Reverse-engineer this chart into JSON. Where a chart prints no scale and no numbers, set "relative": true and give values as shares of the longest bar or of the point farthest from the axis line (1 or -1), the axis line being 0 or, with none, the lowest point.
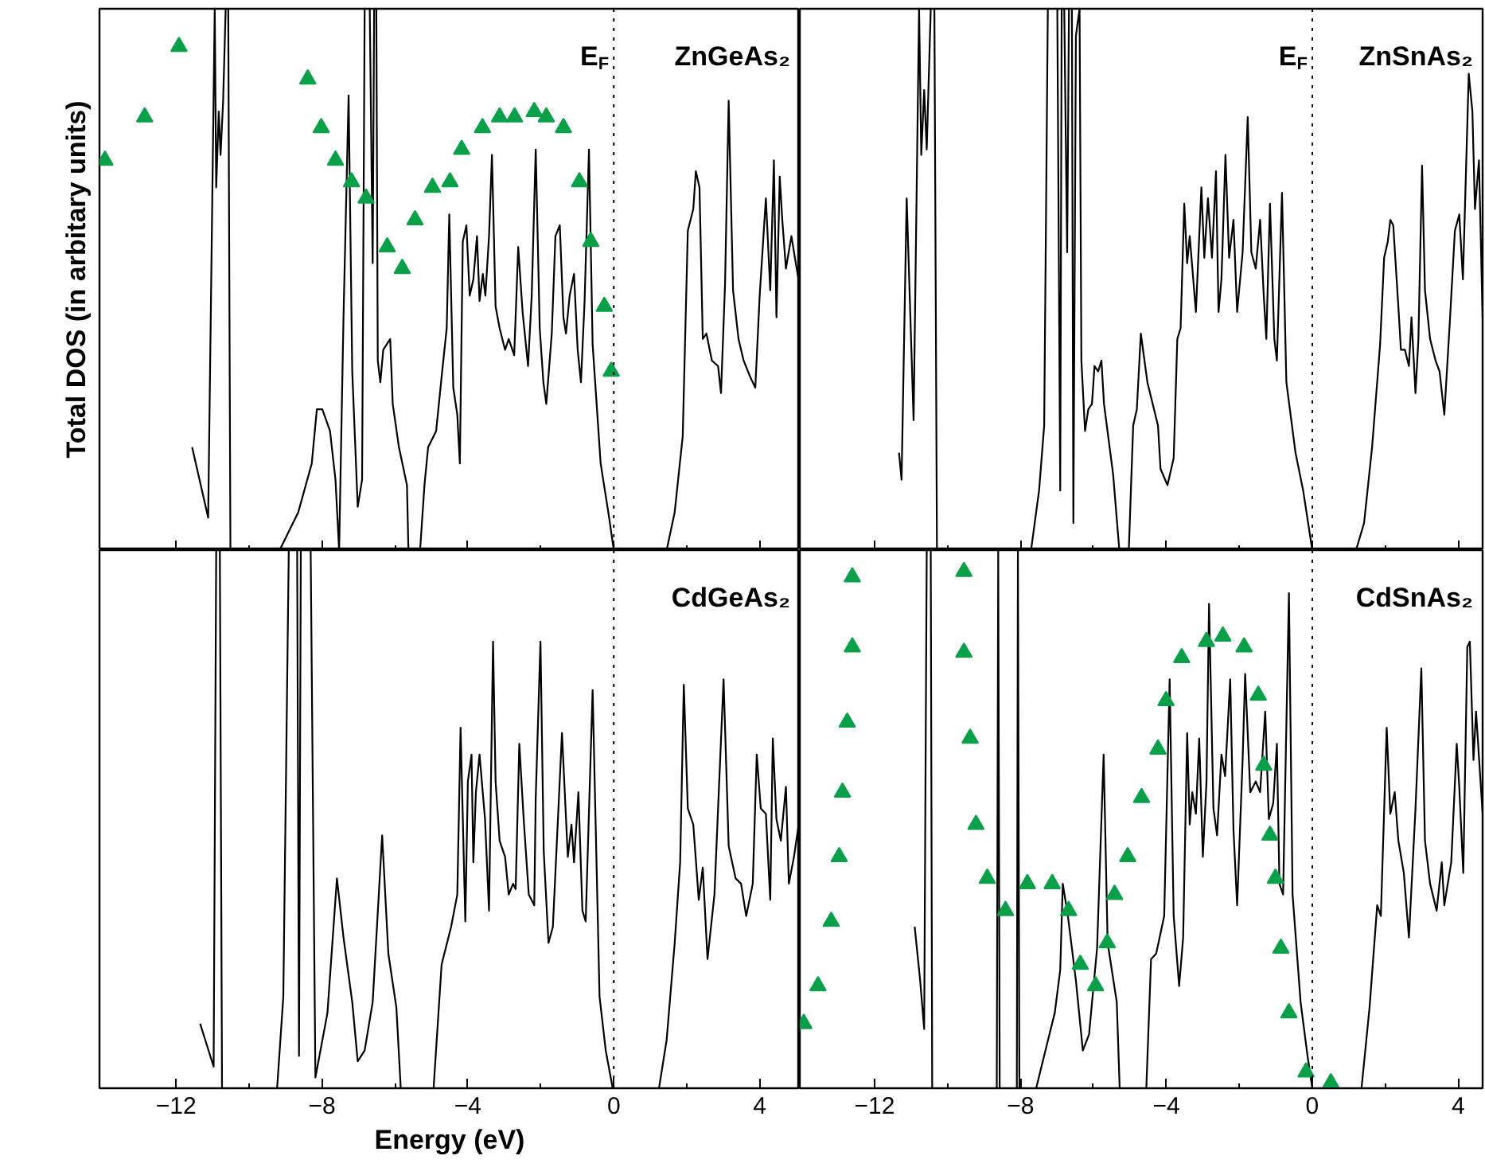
{
  "chart_data": [
    {
      "type": "line",
      "relative": true,
      "tick_labels": false,
      "ylabel": "Total DOS (in arbitary units)",
      "xlim": [
        -14.1,
        5.1
      ],
      "xticks": [
        -12,
        {
          "value": -10,
          "label": null
        },
        -8,
        {
          "value": -6,
          "label": null
        },
        -4,
        {
          "value": -2,
          "label": null
        },
        0,
        {
          "value": 2,
          "label": null
        },
        4
      ],
      "annotations": [
        "ZnGeAs₂"
      ],
      "ref_lines": [
        {
          "axis": "x",
          "value": 0,
          "label": "E$_{F}$",
          "line_style": "dotted"
        }
      ],
      "series": [
        {
          "type": "line",
          "color": "#000000",
          "x": [
            -11.56,
            -11.12,
            -10.94,
            -10.9,
            -10.83,
            -10.78,
            -10.71,
            -10.64,
            -10.57,
            -10.51,
            -9.16,
            -8.65,
            -8.28,
            -8.14,
            -7.99,
            -7.78,
            -7.63,
            -7.53,
            -7.41,
            -7.27,
            -7.17,
            -7.02,
            -6.9,
            -6.83,
            -6.69,
            -6.61,
            -6.57,
            -6.51,
            -6.47,
            -6.4,
            -6.32,
            -6.13,
            -6.06,
            -5.89,
            -5.67,
            -5.63,
            -5.31,
            -5.19,
            -5.09,
            -4.87,
            -4.72,
            -4.58,
            -4.51,
            -4.4,
            -4.29,
            -4.22,
            -4.14,
            -4.04,
            -3.95,
            -3.85,
            -3.75,
            -3.68,
            -3.59,
            -3.52,
            -3.42,
            -3.34,
            -3.24,
            -3.13,
            -2.98,
            -2.88,
            -2.73,
            -2.62,
            -2.5,
            -2.35,
            -2.25,
            -2.14,
            -2.03,
            -1.93,
            -1.85,
            -1.7,
            -1.6,
            -1.48,
            -1.38,
            -1.31,
            -1.21,
            -1.09,
            -0.99,
            -0.9,
            -0.8,
            -0.68,
            -0.58,
            -0.36,
            -0.15,
            0.0,
            1.45,
            1.67,
            1.89,
            2.03,
            2.18,
            2.25,
            2.35,
            2.44,
            2.54,
            2.69,
            2.86,
            2.94,
            3.05,
            3.15,
            3.27,
            3.42,
            3.56,
            3.74,
            3.88,
            4.0,
            4.17,
            4.29,
            4.39,
            4.46,
            4.55,
            4.62,
            4.72,
            4.87,
            4.99,
            5.09
          ],
          "values": [
            0.19,
            0.06,
            1,
            0.67,
            0.81,
            0.73,
            0.83,
            1,
            1,
            0,
            0,
            0.07,
            0.16,
            0.26,
            0.26,
            0.22,
            0.13,
            0,
            0.43,
            0.84,
            0.33,
            0.08,
            0.13,
            1,
            1,
            0.53,
            1,
            1,
            0.35,
            0.31,
            0.37,
            0.39,
            0.27,
            0.19,
            0.12,
            0,
            0,
            0.12,
            0.19,
            0.22,
            0.32,
            0.41,
            0.62,
            0.3,
            0.25,
            0.16,
            0.57,
            0.6,
            0.47,
            0.5,
            0.58,
            0.46,
            0.51,
            0.47,
            0.58,
            0.73,
            0.45,
            0.41,
            0.37,
            0.39,
            0.36,
            0.56,
            0.44,
            0.34,
            0.47,
            0.74,
            0.41,
            0.31,
            0.27,
            0.4,
            0.58,
            0.6,
            0.43,
            0.4,
            0.47,
            0.51,
            0.37,
            0.31,
            0.46,
            0.74,
            0.38,
            0.16,
            0.07,
            0,
            0,
            0.07,
            0.21,
            0.59,
            0.63,
            0.7,
            0.67,
            0.39,
            0.4,
            0.35,
            0.34,
            0.29,
            0.49,
            0.83,
            0.48,
            0.39,
            0.35,
            0.32,
            0.3,
            0.47,
            0.65,
            0.48,
            0.72,
            0.43,
            0.69,
            0.61,
            0.52,
            0.58,
            0.53,
            0.49
          ]
        },
        {
          "type": "scatter",
          "marker": "triangle",
          "color": "#0aa04a",
          "x": [
            -13.95,
            -12.86,
            -11.92,
            -8.39,
            -8.02,
            -7.63,
            -7.19,
            -6.79,
            -6.21,
            -5.8,
            -5.45,
            -4.97,
            -4.49,
            -4.17,
            -3.6,
            -3.13,
            -2.72,
            -2.18,
            -1.85,
            -1.38,
            -0.94,
            -0.63,
            -0.26,
            -0.07
          ],
          "values": [
            0.72,
            0.8,
            0.93,
            0.87,
            0.78,
            0.72,
            0.68,
            0.65,
            0.56,
            0.52,
            0.61,
            0.67,
            0.68,
            0.74,
            0.78,
            0.8,
            0.8,
            0.81,
            0.8,
            0.78,
            0.68,
            0.57,
            0.45,
            0.33
          ]
        }
      ]
    },
    {
      "type": "line",
      "relative": true,
      "tick_labels": false,
      "xlim": [
        -14.05,
        4.67
      ],
      "xticks": [
        -12,
        {
          "value": -10,
          "label": null
        },
        -8,
        {
          "value": -6,
          "label": null
        },
        -4,
        {
          "value": -2,
          "label": null
        },
        0,
        {
          "value": 2,
          "label": null
        },
        4
      ],
      "annotations": [
        "ZnSnAs₂"
      ],
      "ref_lines": [
        {
          "axis": "x",
          "value": 0,
          "label": "E$_{F}$",
          "line_style": "dotted"
        }
      ],
      "series": [
        {
          "type": "line",
          "color": "#000000",
          "x": [
            -11.33,
            -11.26,
            -11.12,
            -10.93,
            -10.78,
            -10.72,
            -10.64,
            -10.57,
            -10.46,
            -10.36,
            -10.29,
            -7.71,
            -7.49,
            -7.35,
            -7.25,
            -6.99,
            -6.91,
            -6.87,
            -6.8,
            -6.72,
            -6.67,
            -6.59,
            -6.55,
            -6.48,
            -6.38,
            -6.33,
            -6.23,
            -6.14,
            -6.04,
            -5.97,
            -5.87,
            -5.78,
            -5.71,
            -5.46,
            -5.29,
            -5.03,
            -4.91,
            -4.81,
            -4.7,
            -4.52,
            -4.23,
            -4.16,
            -3.97,
            -3.8,
            -3.7,
            -3.61,
            -3.51,
            -3.43,
            -3.36,
            -3.19,
            -3.04,
            -2.96,
            -2.86,
            -2.75,
            -2.64,
            -2.57,
            -2.49,
            -2.38,
            -2.28,
            -2.16,
            -2.06,
            -1.91,
            -1.77,
            -1.67,
            -1.55,
            -1.43,
            -1.33,
            -1.26,
            -1.16,
            -1.04,
            -0.97,
            -0.83,
            -0.71,
            -0.46,
            -0.25,
            0.0,
            1.2,
            1.42,
            1.64,
            1.86,
            1.97,
            2.07,
            2.14,
            2.22,
            2.36,
            2.43,
            2.54,
            2.65,
            2.72,
            2.83,
            2.91,
            3.01,
            3.09,
            3.23,
            3.38,
            3.49,
            3.62,
            3.77,
            3.91,
            4.03,
            4.13,
            4.29,
            4.39,
            4.46,
            4.57,
            4.67
          ],
          "values": [
            0.18,
            0.13,
            0.65,
            0.24,
            1,
            0.73,
            0.85,
            0.74,
            1,
            1,
            0,
            0,
            0.11,
            0.23,
            1,
            1,
            0.11,
            1,
            1,
            0.55,
            1,
            1,
            0.05,
            0.95,
            1,
            0.35,
            0.22,
            0.26,
            0.27,
            0.34,
            0.33,
            0.35,
            0.27,
            0.14,
            0,
            0,
            0.23,
            0.26,
            0.4,
            0.31,
            0.23,
            0.15,
            0.12,
            0.17,
            0.39,
            0.41,
            0.64,
            0.53,
            0.58,
            0.44,
            0.67,
            0.54,
            0.65,
            0.54,
            0.7,
            0.44,
            0.5,
            0.73,
            0.54,
            0.61,
            0.44,
            0.55,
            0.8,
            0.55,
            0.52,
            0.61,
            0.47,
            0.39,
            0.64,
            0.39,
            0.35,
            0.66,
            0.31,
            0.18,
            0.11,
            0,
            0,
            0.05,
            0.19,
            0.38,
            0.54,
            0.57,
            0.61,
            0.6,
            0.45,
            0.37,
            0.37,
            0.34,
            0.43,
            0.29,
            0.39,
            0.71,
            0.48,
            0.39,
            0.35,
            0.33,
            0.25,
            0.42,
            0.59,
            0.62,
            0.5,
            0.88,
            0.81,
            0.63,
            0.72,
            0.43
          ]
        }
      ]
    },
    {
      "type": "line",
      "relative": true,
      "tick_labels": "x",
      "xlabel": "Energy (eV)",
      "xlim": [
        -14.1,
        5.1
      ],
      "xticks": [
        -12,
        {
          "value": -10,
          "label": null
        },
        -8,
        {
          "value": -6,
          "label": null
        },
        -4,
        {
          "value": -2,
          "label": null
        },
        0,
        {
          "value": 2,
          "label": null
        },
        4
      ],
      "annotations": [
        "CdGeAs₂"
      ],
      "ref_lines": [
        {
          "axis": "x",
          "value": 0,
          "line_style": "dotted"
        }
      ],
      "series": [
        {
          "type": "line",
          "color": "#000000",
          "x": [
            -11.34,
            -10.97,
            -10.9,
            -10.8,
            -10.74,
            -9.23,
            -9.06,
            -8.91,
            -8.68,
            -8.63,
            -8.58,
            -8.31,
            -8.18,
            -7.85,
            -7.59,
            -7.41,
            -7.17,
            -7.02,
            -6.83,
            -6.61,
            -6.35,
            -6.18,
            -5.96,
            -5.84,
            -4.94,
            -4.72,
            -4.46,
            -4.29,
            -4.2,
            -4.07,
            -4.0,
            -3.9,
            -3.85,
            -3.78,
            -3.68,
            -3.53,
            -3.42,
            -3.31,
            -3.24,
            -3.13,
            -2.98,
            -2.88,
            -2.76,
            -2.69,
            -2.59,
            -2.47,
            -2.33,
            -2.18,
            -2.14,
            -2.01,
            -1.92,
            -1.79,
            -1.67,
            -1.42,
            -1.26,
            -1.16,
            -1.09,
            -0.97,
            -0.86,
            -0.77,
            -0.58,
            -0.39,
            -0.22,
            -0.03,
            1.24,
            1.45,
            1.67,
            1.82,
            1.92,
            2.03,
            2.18,
            2.33,
            2.44,
            2.57,
            2.76,
            3.01,
            3.15,
            3.34,
            3.49,
            3.63,
            3.81,
            3.92,
            4.03,
            4.17,
            4.29,
            4.36,
            4.46,
            4.58,
            4.72,
            4.8,
            4.94,
            5.09
          ],
          "values": [
            0.12,
            0.04,
            1,
            1,
            0,
            0,
            0.17,
            1,
            1,
            0.06,
            1,
            1,
            0.02,
            0.14,
            0.39,
            0.28,
            0.16,
            0.05,
            0.07,
            0.16,
            0.47,
            0.25,
            0.15,
            0,
            0,
            0.23,
            0.3,
            0.36,
            0.67,
            0.31,
            0.57,
            0.62,
            0.42,
            0.55,
            0.62,
            0.5,
            0.33,
            0.83,
            0.57,
            0.46,
            0.43,
            0.36,
            0.38,
            0.37,
            0.64,
            0.5,
            0.36,
            0.34,
            0.54,
            0.83,
            0.44,
            0.27,
            0.3,
            0.66,
            0.43,
            0.49,
            0.42,
            0.55,
            0.33,
            0.31,
            0.74,
            0.17,
            0.07,
            0,
            0,
            0.09,
            0.27,
            0.42,
            0.75,
            0.52,
            0.49,
            0.35,
            0.41,
            0.24,
            0.36,
            0.76,
            0.45,
            0.39,
            0.38,
            0.32,
            0.38,
            0.62,
            0.52,
            0.51,
            0.35,
            0.65,
            0.5,
            0.46,
            0.56,
            0.38,
            0.43,
            0.5
          ]
        }
      ]
    },
    {
      "type": "line",
      "relative": true,
      "tick_labels": "x",
      "xlim": [
        -14.05,
        4.67
      ],
      "xticks": [
        -12,
        {
          "value": -10,
          "label": null
        },
        -8,
        {
          "value": -6,
          "label": null
        },
        -4,
        {
          "value": -2,
          "label": null
        },
        0,
        {
          "value": 2,
          "label": null
        },
        4
      ],
      "annotations": [
        "CdSnAs₂"
      ],
      "ref_lines": [
        {
          "axis": "x",
          "value": 0,
          "line_style": "dotted"
        }
      ],
      "series": [
        {
          "type": "line",
          "color": "#000000",
          "x": [
            -10.9,
            -10.75,
            -10.64,
            -10.57,
            -10.46,
            -10.42,
            -8.65,
            -8.61,
            -8.57,
            -8.1,
            -8.07,
            -8.03,
            -7.57,
            -7.28,
            -7.06,
            -6.91,
            -6.84,
            -6.7,
            -6.48,
            -6.29,
            -6.12,
            -5.9,
            -5.72,
            -5.61,
            -5.36,
            -5.28,
            -4.55,
            -4.42,
            -4.28,
            -4.06,
            -3.91,
            -3.8,
            -3.65,
            -3.54,
            -3.43,
            -3.36,
            -3.29,
            -3.19,
            -3.1,
            -3.0,
            -2.9,
            -2.83,
            -2.71,
            -2.61,
            -2.49,
            -2.39,
            -2.25,
            -2.16,
            -2.06,
            -1.91,
            -1.84,
            -1.7,
            -1.55,
            -1.43,
            -1.29,
            -1.19,
            -1.07,
            -0.97,
            -0.9,
            -0.8,
            -0.64,
            -0.54,
            -0.32,
            -0.13,
            0.0,
            1.35,
            1.57,
            1.78,
            1.88,
            2.04,
            2.14,
            2.26,
            2.36,
            2.51,
            2.65,
            2.83,
            2.99,
            3.09,
            3.23,
            3.41,
            3.55,
            3.62,
            3.81,
            3.96,
            4.03,
            4.14,
            4.25,
            4.32,
            4.42,
            4.49,
            4.67
          ],
          "values": [
            0.3,
            0.2,
            0.11,
            1,
            1,
            0,
            0,
            1,
            0,
            0,
            1,
            0,
            0,
            0.08,
            0.14,
            0.22,
            0.38,
            0.32,
            0.2,
            0.07,
            0.1,
            0.26,
            0.62,
            0.27,
            0.16,
            0,
            0,
            0.24,
            0.25,
            0.32,
            0.76,
            0.32,
            0.19,
            0.28,
            0.66,
            0.49,
            0.55,
            0.51,
            0.65,
            0.43,
            0.57,
            0.9,
            0.52,
            0.47,
            0.62,
            0.58,
            0.76,
            0.48,
            0.34,
            0.61,
            0.77,
            0.55,
            0.57,
            0.55,
            0.7,
            0.5,
            0.53,
            0.64,
            0.38,
            0.36,
            0.92,
            0.36,
            0.16,
            0.06,
            0,
            0,
            0.15,
            0.34,
            0.32,
            0.67,
            0.51,
            0.55,
            0.46,
            0.4,
            0.28,
            0.52,
            0.78,
            0.46,
            0.38,
            0.33,
            0.42,
            0.34,
            0.42,
            0.64,
            0.56,
            0.4,
            0.82,
            0.83,
            0.61,
            0.7,
            0.51
          ]
        },
        {
          "type": "scatter",
          "marker": "triangle",
          "color": "#0aa04a",
          "x": [
            -12.61,
            -12.61,
            -12.75,
            -12.88,
            -12.97,
            -13.19,
            -13.55,
            -13.94,
            -9.55,
            -9.55,
            -9.38,
            -9.22,
            -8.91,
            -8.41,
            -7.81,
            -7.13,
            -6.68,
            -6.36,
            -5.94,
            -5.62,
            -5.42,
            -5.06,
            -4.68,
            -4.23,
            -4.01,
            -3.58,
            -2.9,
            -2.45,
            -1.87,
            -1.48,
            -1.33,
            -1.16,
            -1.01,
            -0.86,
            -0.64,
            -0.17,
            0.51
          ],
          "values": [
            0.95,
            0.82,
            0.68,
            0.55,
            0.43,
            0.31,
            0.19,
            0.12,
            0.96,
            0.81,
            0.65,
            0.49,
            0.39,
            0.33,
            0.38,
            0.38,
            0.33,
            0.23,
            0.19,
            0.27,
            0.36,
            0.43,
            0.54,
            0.63,
            0.72,
            0.8,
            0.83,
            0.84,
            0.82,
            0.73,
            0.6,
            0.47,
            0.39,
            0.26,
            0.14,
            0.03,
            0.01
          ]
        }
      ]
    }
  ]
}
